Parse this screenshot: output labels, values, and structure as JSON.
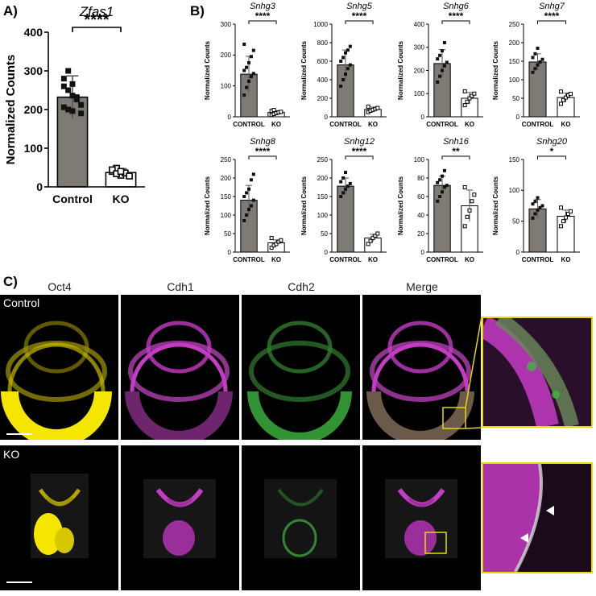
{
  "panels": {
    "a": "A)",
    "b": "B)",
    "c": "C)"
  },
  "chart_data": [
    {
      "id": "zfas1",
      "type": "bar",
      "title": "Zfas1",
      "ylabel": "Normalized Counts",
      "categories": [
        "Control",
        "KO"
      ],
      "values": [
        232,
        37
      ],
      "errors": [
        55,
        10
      ],
      "ylim": [
        0,
        400
      ],
      "yticks": [
        0,
        100,
        200,
        300,
        400
      ],
      "significance": "****",
      "points": [
        [
          260,
          250,
          236,
          226,
          212,
          206,
          200,
          196,
          232,
          190,
          280,
          300,
          266,
          228
        ],
        [
          40,
          48,
          30,
          36,
          28,
          44,
          34,
          40
        ]
      ]
    },
    {
      "id": "snhg3",
      "type": "bar",
      "title": "Snhg3",
      "ylabel": "Normalized Counts",
      "categories": [
        "CONTROL",
        "KO"
      ],
      "values": [
        138,
        14
      ],
      "errors": [
        58,
        6
      ],
      "ylim": [
        0,
        300
      ],
      "yticks": [
        0,
        100,
        200,
        300
      ],
      "significance": "****",
      "points": [
        [
          70,
          95,
          115,
          130,
          140,
          150,
          160,
          175,
          195,
          215,
          235
        ],
        [
          6,
          9,
          12,
          14,
          16,
          19,
          22
        ]
      ]
    },
    {
      "id": "snhg5",
      "type": "bar",
      "title": "Snhg5",
      "ylabel": "Normalized Counts",
      "categories": [
        "CONTROL",
        "KO"
      ],
      "values": [
        560,
        80
      ],
      "errors": [
        160,
        25
      ],
      "ylim": [
        0,
        1000
      ],
      "yticks": [
        0,
        200,
        400,
        600,
        800,
        1000
      ],
      "significance": "****",
      "points": [
        [
          330,
          400,
          460,
          520,
          560,
          600,
          640,
          690,
          720,
          760
        ],
        [
          50,
          65,
          75,
          85,
          95,
          110
        ]
      ]
    },
    {
      "id": "snhg6",
      "type": "bar",
      "title": "Snhg6",
      "ylabel": "Normalized Counts",
      "categories": [
        "CONTROL",
        "KO"
      ],
      "values": [
        230,
        80
      ],
      "errors": [
        60,
        25
      ],
      "ylim": [
        0,
        400
      ],
      "yticks": [
        0,
        100,
        200,
        300,
        400
      ],
      "significance": "****",
      "points": [
        [
          150,
          175,
          200,
          220,
          235,
          250,
          265,
          285,
          320
        ],
        [
          50,
          65,
          80,
          90,
          100,
          110
        ]
      ]
    },
    {
      "id": "snhg7",
      "type": "bar",
      "title": "Snhg7",
      "ylabel": "Normalized Counts",
      "categories": [
        "CONTROL",
        "KO"
      ],
      "values": [
        148,
        52
      ],
      "errors": [
        22,
        12
      ],
      "ylim": [
        0,
        250
      ],
      "yticks": [
        0,
        50,
        100,
        150,
        200,
        250
      ],
      "significance": "****",
      "points": [
        [
          120,
          130,
          140,
          148,
          155,
          160,
          170,
          185
        ],
        [
          35,
          45,
          52,
          58,
          62,
          68
        ]
      ]
    },
    {
      "id": "snhg8",
      "type": "bar",
      "title": "Snhg8",
      "ylabel": "Normalized Counts",
      "categories": [
        "CONTROL",
        "KO"
      ],
      "values": [
        140,
        25
      ],
      "errors": [
        40,
        8
      ],
      "ylim": [
        0,
        250
      ],
      "yticks": [
        0,
        50,
        100,
        150,
        200,
        250
      ],
      "significance": "****",
      "points": [
        [
          85,
          100,
          115,
          125,
          140,
          150,
          160,
          170,
          195,
          210
        ],
        [
          12,
          18,
          22,
          28,
          32,
          38
        ]
      ]
    },
    {
      "id": "snhg12",
      "type": "bar",
      "title": "Snhg12",
      "ylabel": "Normalized Counts",
      "categories": [
        "CONTROL",
        "KO"
      ],
      "values": [
        178,
        38
      ],
      "errors": [
        22,
        10
      ],
      "ylim": [
        0,
        250
      ],
      "yticks": [
        0,
        50,
        100,
        150,
        200,
        250
      ],
      "significance": "****",
      "points": [
        [
          150,
          160,
          170,
          178,
          185,
          190,
          200,
          215
        ],
        [
          22,
          30,
          38,
          44,
          50
        ]
      ]
    },
    {
      "id": "snh16",
      "type": "bar",
      "title": "Snh16",
      "ylabel": "Normalized Counts",
      "categories": [
        "CONTROL",
        "KO"
      ],
      "values": [
        72,
        50
      ],
      "errors": [
        10,
        17
      ],
      "ylim": [
        0,
        100
      ],
      "yticks": [
        0,
        20,
        40,
        60,
        80,
        100
      ],
      "significance": "**",
      "points": [
        [
          55,
          60,
          65,
          70,
          72,
          75,
          78,
          82,
          88
        ],
        [
          28,
          38,
          45,
          55,
          62,
          70
        ]
      ]
    },
    {
      "id": "snhg20",
      "type": "bar",
      "title": "Snhg20",
      "ylabel": "Normalized Counts",
      "categories": [
        "CONTROL",
        "KO"
      ],
      "values": [
        70,
        58
      ],
      "errors": [
        15,
        10
      ],
      "ylim": [
        0,
        150
      ],
      "yticks": [
        0,
        50,
        100,
        150
      ],
      "significance": "*",
      "points": [
        [
          55,
          62,
          68,
          72,
          75,
          78,
          82,
          88
        ],
        [
          42,
          50,
          56,
          62,
          66,
          72
        ]
      ]
    }
  ],
  "micrographs": {
    "channels": [
      "Oct4",
      "Cdh1",
      "Cdh2",
      "Merge"
    ],
    "rows": [
      "Control",
      "KO"
    ],
    "colors": {
      "oct4": "#e8d800",
      "cdh1": "#c43bc4",
      "cdh2": "#3fb83f",
      "inset_border": "#e8d800"
    }
  }
}
